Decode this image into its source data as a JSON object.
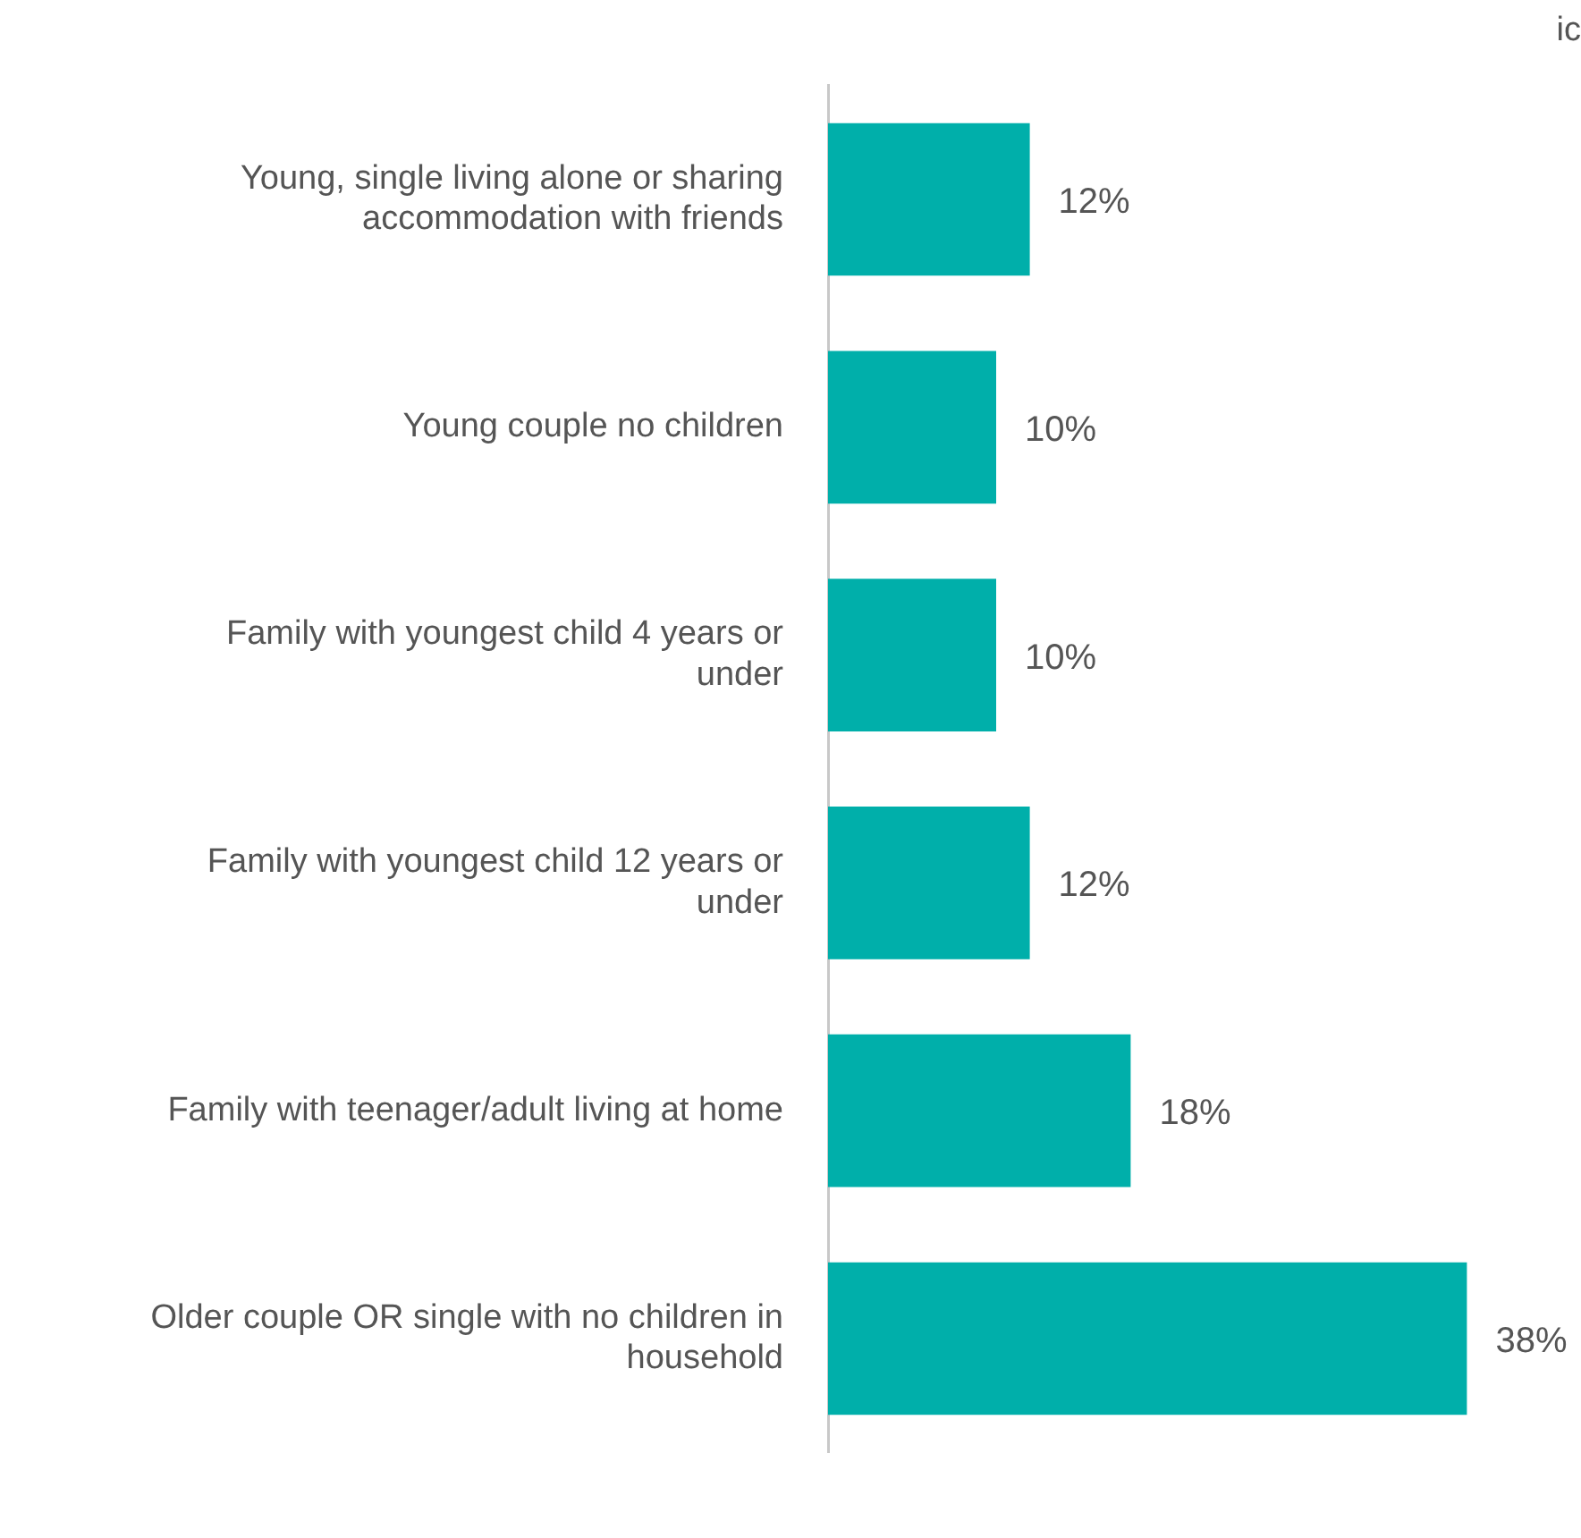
{
  "chart_data": {
    "type": "bar",
    "orientation": "horizontal",
    "categories": [
      "Young, single living alone or sharing accommodation with friends",
      "Young couple no children",
      "Family with youngest child 4 years or under",
      "Family with youngest child 12 years or under",
      "Family with teenager/adult living at home",
      "Older couple OR single with no children in household"
    ],
    "values": [
      12,
      10,
      10,
      12,
      18,
      38
    ],
    "color": "#00afaa",
    "data_labels": true,
    "value_labels": [
      "12%",
      "10%",
      "10%",
      "12%",
      "18%",
      "38%"
    ],
    "tick_labels": "y",
    "legend": false,
    "annotations": [
      "ic"
    ]
  }
}
